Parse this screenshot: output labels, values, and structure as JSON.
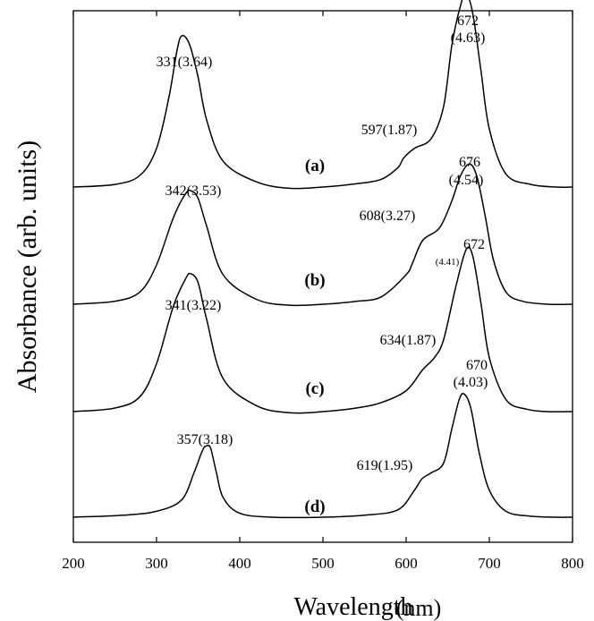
{
  "chart_data": {
    "type": "line",
    "xlabel": "Wavelength",
    "xunit": "(nm)",
    "ylabel": "Absorbance (arb. units)",
    "xlim": [
      200,
      800
    ],
    "xticks": [
      "200",
      "300",
      "400",
      "500",
      "600",
      "700",
      "800"
    ],
    "yticks_shown": false,
    "series": [
      {
        "name": "(a)",
        "x": [
          200,
          250,
          280,
          300,
          315,
          325,
          331,
          340,
          350,
          360,
          380,
          420,
          460,
          500,
          540,
          570,
          590,
          597,
          610,
          630,
          645,
          655,
          665,
          672,
          680,
          690,
          700,
          720,
          750,
          780,
          800
        ],
        "y": [
          0.0,
          0.04,
          0.18,
          0.6,
          1.4,
          2.15,
          2.35,
          2.2,
          1.7,
          1.05,
          0.4,
          0.08,
          -0.02,
          0.0,
          0.05,
          0.12,
          0.3,
          0.45,
          0.6,
          0.75,
          1.25,
          2.2,
          2.8,
          3.0,
          2.7,
          1.8,
          0.9,
          0.2,
          0.04,
          0.0,
          0.0
        ]
      },
      {
        "name": "(b)",
        "x": [
          200,
          250,
          280,
          300,
          320,
          335,
          342,
          350,
          360,
          380,
          420,
          460,
          500,
          540,
          570,
          600,
          608,
          620,
          640,
          655,
          665,
          676,
          685,
          695,
          705,
          720,
          740,
          770,
          800
        ],
        "y": [
          0.0,
          0.06,
          0.25,
          0.8,
          1.75,
          2.25,
          2.3,
          2.15,
          1.6,
          0.6,
          0.1,
          -0.02,
          0.0,
          0.06,
          0.15,
          0.6,
          0.85,
          1.3,
          1.55,
          2.1,
          2.6,
          2.85,
          2.6,
          1.8,
          0.9,
          0.25,
          0.06,
          0.0,
          0.0
        ]
      },
      {
        "name": "(c)",
        "x": [
          200,
          250,
          280,
          300,
          320,
          335,
          341,
          350,
          360,
          380,
          420,
          460,
          500,
          540,
          570,
          600,
          620,
          634,
          645,
          660,
          672,
          680,
          690,
          700,
          720,
          745,
          770,
          800
        ],
        "y": [
          0.0,
          0.06,
          0.25,
          0.8,
          1.75,
          2.22,
          2.3,
          2.15,
          1.55,
          0.55,
          0.1,
          -0.02,
          0.0,
          0.06,
          0.15,
          0.35,
          0.7,
          0.9,
          1.2,
          2.1,
          2.7,
          2.6,
          1.8,
          0.9,
          0.2,
          0.04,
          0.0,
          0.0
        ]
      },
      {
        "name": "(d)",
        "x": [
          200,
          260,
          300,
          330,
          345,
          355,
          360,
          365,
          372,
          380,
          400,
          440,
          500,
          550,
          590,
          610,
          619,
          630,
          645,
          655,
          664,
          670,
          678,
          688,
          700,
          720,
          750,
          780,
          800
        ],
        "y": [
          0.0,
          0.04,
          0.12,
          0.35,
          0.9,
          1.35,
          1.45,
          1.4,
          0.9,
          0.4,
          0.08,
          0.0,
          0.0,
          0.04,
          0.15,
          0.55,
          0.78,
          0.9,
          1.1,
          1.8,
          2.4,
          2.5,
          2.2,
          1.3,
          0.55,
          0.12,
          0.02,
          0.0,
          0.0
        ]
      }
    ],
    "annotations": [
      {
        "text": "331(3.64)",
        "x": 331,
        "series": 0
      },
      {
        "text": "672",
        "x": 672,
        "series": 0
      },
      {
        "text": "(4.63)",
        "x": 672,
        "series": 0
      },
      {
        "text": "597(1.87)",
        "x": 597,
        "series": 0
      },
      {
        "text": "342(3.53)",
        "x": 342,
        "series": 1
      },
      {
        "text": "676",
        "x": 676,
        "series": 1
      },
      {
        "text": "(4.54)",
        "x": 676,
        "series": 1
      },
      {
        "text": "608(3.27)",
        "x": 608,
        "series": 1
      },
      {
        "text": "341(3.22)",
        "x": 341,
        "series": 2
      },
      {
        "text": "672",
        "x": 672,
        "series": 2
      },
      {
        "text": "(4.41)",
        "x": 672,
        "series": 2
      },
      {
        "text": "634(1.87)",
        "x": 634,
        "series": 2
      },
      {
        "text": "357(3.18)",
        "x": 357,
        "series": 3
      },
      {
        "text": "670",
        "x": 670,
        "series": 3
      },
      {
        "text": "(4.03)",
        "x": 670,
        "series": 3
      },
      {
        "text": "619(1.95)",
        "x": 619,
        "series": 3
      }
    ],
    "grid": false,
    "legend": "none"
  }
}
